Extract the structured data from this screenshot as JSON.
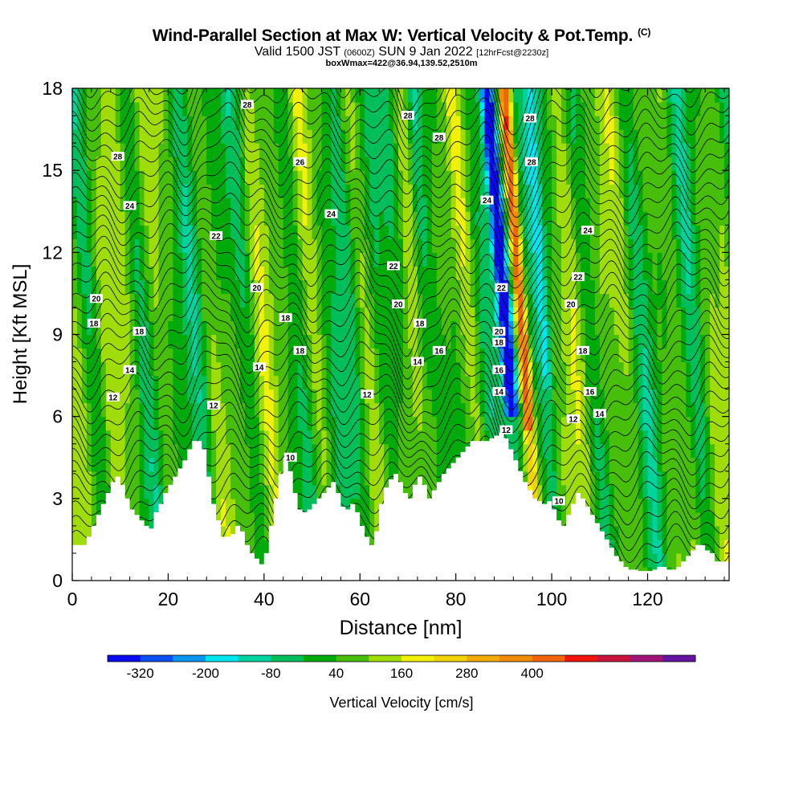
{
  "chart_data": {
    "type": "heatmap",
    "title": "Wind-Parallel Section at Max W: Vertical Velocity & Pot.Temp.",
    "title_mark": "(C)",
    "subtitle_main": "Valid 1500 JST",
    "subtitle_utc": "(0600Z)",
    "subtitle_date": "SUN 9 Jan 2022",
    "subtitle_fcst": "[12hrFcst@2230z]",
    "subtitle2": "boxWmax=422@36.94,139.52,2510m",
    "xlabel": "Distance [nm]",
    "ylabel": "Height [Kft MSL]",
    "xlim": [
      0,
      137
    ],
    "ylim": [
      0,
      18
    ],
    "x_ticks": [
      "0",
      "20",
      "40",
      "60",
      "80",
      "100",
      "120"
    ],
    "y_ticks": [
      "0",
      "3",
      "6",
      "9",
      "12",
      "15",
      "18"
    ],
    "colorbar": {
      "label": "Vertical Velocity [cm/s]",
      "tick_labels": [
        "-320",
        "-200",
        "-80",
        "40",
        "160",
        "280",
        "400"
      ],
      "colors": [
        "#0a0af0",
        "#0a50f0",
        "#0a96f0",
        "#00e6f0",
        "#00d2a0",
        "#00be5a",
        "#00aa0a",
        "#46be0a",
        "#a0dc0a",
        "#f0f00a",
        "#f0d20a",
        "#f0aa0a",
        "#f08c0a",
        "#f0640a",
        "#f0140a",
        "#c8143c",
        "#a01478",
        "#6414a0"
      ]
    },
    "contour_variable": "Potential temperature",
    "contour_labels": [
      {
        "text": "28",
        "x": 36.5,
        "y": 17.4
      },
      {
        "text": "28",
        "x": 70.0,
        "y": 17.0
      },
      {
        "text": "28",
        "x": 76.5,
        "y": 16.2
      },
      {
        "text": "28",
        "x": 95.5,
        "y": 16.9
      },
      {
        "text": "28",
        "x": 95.8,
        "y": 15.3
      },
      {
        "text": "28",
        "x": 9.5,
        "y": 15.5
      },
      {
        "text": "26",
        "x": 47.5,
        "y": 15.3
      },
      {
        "text": "24",
        "x": 12.0,
        "y": 13.7
      },
      {
        "text": "24",
        "x": 54.0,
        "y": 13.4
      },
      {
        "text": "24",
        "x": 86.5,
        "y": 13.9
      },
      {
        "text": "24",
        "x": 107.5,
        "y": 12.8
      },
      {
        "text": "22",
        "x": 30.0,
        "y": 12.6
      },
      {
        "text": "22",
        "x": 67.0,
        "y": 11.5
      },
      {
        "text": "22",
        "x": 89.5,
        "y": 10.7
      },
      {
        "text": "22",
        "x": 105.5,
        "y": 11.1
      },
      {
        "text": "20",
        "x": 5.0,
        "y": 10.3
      },
      {
        "text": "20",
        "x": 38.5,
        "y": 10.7
      },
      {
        "text": "20",
        "x": 68.0,
        "y": 10.1
      },
      {
        "text": "20",
        "x": 89.0,
        "y": 9.1
      },
      {
        "text": "20",
        "x": 104.0,
        "y": 10.1
      },
      {
        "text": "18",
        "x": 4.5,
        "y": 9.4
      },
      {
        "text": "18",
        "x": 14.0,
        "y": 9.1
      },
      {
        "text": "18",
        "x": 44.5,
        "y": 9.6
      },
      {
        "text": "18",
        "x": 47.5,
        "y": 8.4
      },
      {
        "text": "18",
        "x": 72.5,
        "y": 9.4
      },
      {
        "text": "18",
        "x": 89.0,
        "y": 8.7
      },
      {
        "text": "18",
        "x": 106.5,
        "y": 8.4
      },
      {
        "text": "16",
        "x": 76.5,
        "y": 8.4
      },
      {
        "text": "16",
        "x": 89.0,
        "y": 7.7
      },
      {
        "text": "16",
        "x": 108.0,
        "y": 6.9
      },
      {
        "text": "14",
        "x": 12.0,
        "y": 7.7
      },
      {
        "text": "14",
        "x": 39.0,
        "y": 7.8
      },
      {
        "text": "14",
        "x": 72.0,
        "y": 8.0
      },
      {
        "text": "14",
        "x": 89.0,
        "y": 6.9
      },
      {
        "text": "14",
        "x": 110.0,
        "y": 6.1
      },
      {
        "text": "12",
        "x": 8.5,
        "y": 6.7
      },
      {
        "text": "12",
        "x": 29.5,
        "y": 6.4
      },
      {
        "text": "12",
        "x": 61.5,
        "y": 6.8
      },
      {
        "text": "12",
        "x": 90.5,
        "y": 5.5
      },
      {
        "text": "12",
        "x": 104.5,
        "y": 5.9
      },
      {
        "text": "10",
        "x": 45.5,
        "y": 4.5
      },
      {
        "text": "10",
        "x": 101.5,
        "y": 2.9
      }
    ]
  }
}
